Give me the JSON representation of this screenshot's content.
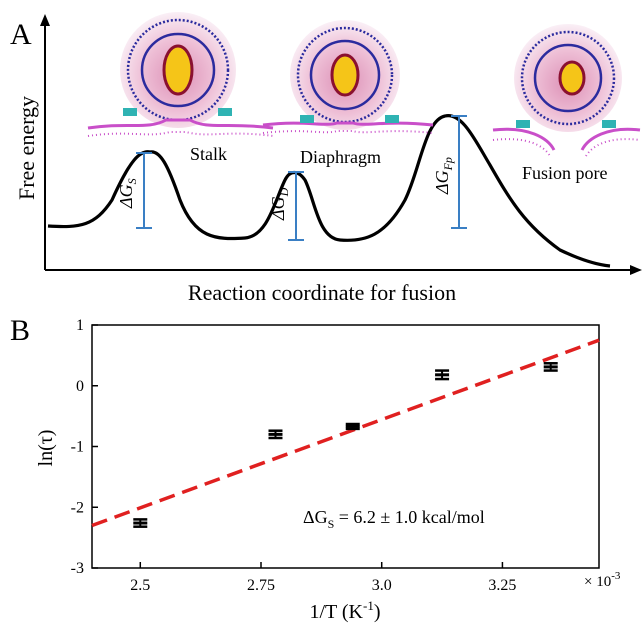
{
  "panel_a": {
    "label": "A",
    "ylabel": "Free energy",
    "xlabel": "Reaction coordinate for fusion",
    "states": [
      {
        "name": "Stalk",
        "barrier": "ΔG",
        "barrier_sub": "S"
      },
      {
        "name": "Diaphragm",
        "barrier": "ΔG",
        "barrier_sub": "D"
      },
      {
        "name": "Fusion pore",
        "barrier": "ΔG",
        "barrier_sub": "Fp"
      }
    ],
    "colors": {
      "curve": "#000000",
      "barrier": "#3a7fc4",
      "membrane": "#c94fc9",
      "vesicle_lipid": "#2b2b9e",
      "core": "#f5c518"
    }
  },
  "panel_b": {
    "label": "B",
    "annotation_main": "ΔG",
    "annotation_sub": "S",
    "annotation_rest": " = 6.2 ± 1.0 kcal/mol",
    "multiplier": "× 10",
    "multiplier_exp": "-3",
    "xlabel_main": "1/T (K",
    "xlabel_exp": "-1",
    "xlabel_end": ")",
    "ylabel": "ln(τ)"
  },
  "chart_data": {
    "type": "scatter",
    "x": [
      2.5,
      2.78,
      2.94,
      3.125,
      3.35
    ],
    "y": [
      -2.26,
      -0.8,
      -0.67,
      0.18,
      0.31
    ],
    "yerr": [
      0.06,
      0.06,
      0.04,
      0.07,
      0.06
    ],
    "xlim": [
      2.4,
      3.45
    ],
    "ylim": [
      -3,
      1
    ],
    "xticks": [
      2.5,
      2.75,
      3.0,
      3.25
    ],
    "xtick_labels": [
      "2.5",
      "2.75",
      "3.0",
      "3.25"
    ],
    "yticks": [
      -3,
      -2,
      -1,
      0,
      1
    ],
    "ytick_labels": [
      "-3",
      "-2",
      "-1",
      "0",
      "1"
    ],
    "fit_line": {
      "x": [
        2.4,
        3.45
      ],
      "y": [
        -2.3,
        0.75
      ],
      "color": "#e02020",
      "style": "dashed"
    },
    "marker_color": "#000000"
  }
}
